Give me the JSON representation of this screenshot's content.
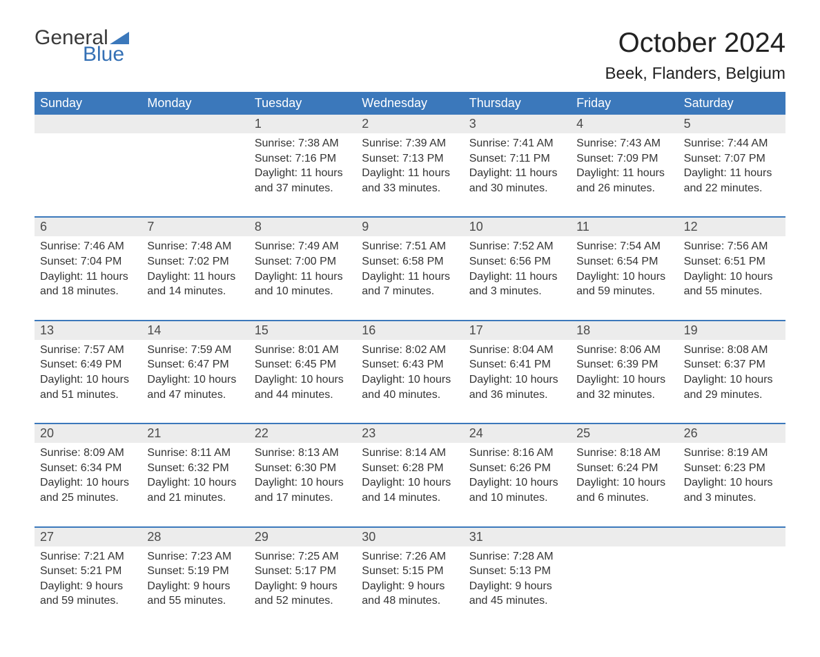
{
  "logo": {
    "general": "General",
    "blue": "Blue",
    "flag_color": "#3b78bb"
  },
  "title": "October 2024",
  "location": "Beek, Flanders, Belgium",
  "colors": {
    "header_bg": "#3b78bb",
    "header_text": "#ffffff",
    "daynum_bg": "#ececec",
    "daynum_text": "#4a4a4a",
    "body_text": "#333333",
    "week_border": "#3b78bb",
    "page_bg": "#ffffff"
  },
  "typography": {
    "title_fontsize": 40,
    "location_fontsize": 24,
    "dow_fontsize": 18,
    "daynum_fontsize": 18,
    "body_fontsize": 16
  },
  "days_of_week": [
    "Sunday",
    "Monday",
    "Tuesday",
    "Wednesday",
    "Thursday",
    "Friday",
    "Saturday"
  ],
  "weeks": [
    [
      {
        "n": "",
        "sunrise": "",
        "sunset": "",
        "daylight": ""
      },
      {
        "n": "",
        "sunrise": "",
        "sunset": "",
        "daylight": ""
      },
      {
        "n": "1",
        "sunrise": "Sunrise: 7:38 AM",
        "sunset": "Sunset: 7:16 PM",
        "daylight": "Daylight: 11 hours and 37 minutes."
      },
      {
        "n": "2",
        "sunrise": "Sunrise: 7:39 AM",
        "sunset": "Sunset: 7:13 PM",
        "daylight": "Daylight: 11 hours and 33 minutes."
      },
      {
        "n": "3",
        "sunrise": "Sunrise: 7:41 AM",
        "sunset": "Sunset: 7:11 PM",
        "daylight": "Daylight: 11 hours and 30 minutes."
      },
      {
        "n": "4",
        "sunrise": "Sunrise: 7:43 AM",
        "sunset": "Sunset: 7:09 PM",
        "daylight": "Daylight: 11 hours and 26 minutes."
      },
      {
        "n": "5",
        "sunrise": "Sunrise: 7:44 AM",
        "sunset": "Sunset: 7:07 PM",
        "daylight": "Daylight: 11 hours and 22 minutes."
      }
    ],
    [
      {
        "n": "6",
        "sunrise": "Sunrise: 7:46 AM",
        "sunset": "Sunset: 7:04 PM",
        "daylight": "Daylight: 11 hours and 18 minutes."
      },
      {
        "n": "7",
        "sunrise": "Sunrise: 7:48 AM",
        "sunset": "Sunset: 7:02 PM",
        "daylight": "Daylight: 11 hours and 14 minutes."
      },
      {
        "n": "8",
        "sunrise": "Sunrise: 7:49 AM",
        "sunset": "Sunset: 7:00 PM",
        "daylight": "Daylight: 11 hours and 10 minutes."
      },
      {
        "n": "9",
        "sunrise": "Sunrise: 7:51 AM",
        "sunset": "Sunset: 6:58 PM",
        "daylight": "Daylight: 11 hours and 7 minutes."
      },
      {
        "n": "10",
        "sunrise": "Sunrise: 7:52 AM",
        "sunset": "Sunset: 6:56 PM",
        "daylight": "Daylight: 11 hours and 3 minutes."
      },
      {
        "n": "11",
        "sunrise": "Sunrise: 7:54 AM",
        "sunset": "Sunset: 6:54 PM",
        "daylight": "Daylight: 10 hours and 59 minutes."
      },
      {
        "n": "12",
        "sunrise": "Sunrise: 7:56 AM",
        "sunset": "Sunset: 6:51 PM",
        "daylight": "Daylight: 10 hours and 55 minutes."
      }
    ],
    [
      {
        "n": "13",
        "sunrise": "Sunrise: 7:57 AM",
        "sunset": "Sunset: 6:49 PM",
        "daylight": "Daylight: 10 hours and 51 minutes."
      },
      {
        "n": "14",
        "sunrise": "Sunrise: 7:59 AM",
        "sunset": "Sunset: 6:47 PM",
        "daylight": "Daylight: 10 hours and 47 minutes."
      },
      {
        "n": "15",
        "sunrise": "Sunrise: 8:01 AM",
        "sunset": "Sunset: 6:45 PM",
        "daylight": "Daylight: 10 hours and 44 minutes."
      },
      {
        "n": "16",
        "sunrise": "Sunrise: 8:02 AM",
        "sunset": "Sunset: 6:43 PM",
        "daylight": "Daylight: 10 hours and 40 minutes."
      },
      {
        "n": "17",
        "sunrise": "Sunrise: 8:04 AM",
        "sunset": "Sunset: 6:41 PM",
        "daylight": "Daylight: 10 hours and 36 minutes."
      },
      {
        "n": "18",
        "sunrise": "Sunrise: 8:06 AM",
        "sunset": "Sunset: 6:39 PM",
        "daylight": "Daylight: 10 hours and 32 minutes."
      },
      {
        "n": "19",
        "sunrise": "Sunrise: 8:08 AM",
        "sunset": "Sunset: 6:37 PM",
        "daylight": "Daylight: 10 hours and 29 minutes."
      }
    ],
    [
      {
        "n": "20",
        "sunrise": "Sunrise: 8:09 AM",
        "sunset": "Sunset: 6:34 PM",
        "daylight": "Daylight: 10 hours and 25 minutes."
      },
      {
        "n": "21",
        "sunrise": "Sunrise: 8:11 AM",
        "sunset": "Sunset: 6:32 PM",
        "daylight": "Daylight: 10 hours and 21 minutes."
      },
      {
        "n": "22",
        "sunrise": "Sunrise: 8:13 AM",
        "sunset": "Sunset: 6:30 PM",
        "daylight": "Daylight: 10 hours and 17 minutes."
      },
      {
        "n": "23",
        "sunrise": "Sunrise: 8:14 AM",
        "sunset": "Sunset: 6:28 PM",
        "daylight": "Daylight: 10 hours and 14 minutes."
      },
      {
        "n": "24",
        "sunrise": "Sunrise: 8:16 AM",
        "sunset": "Sunset: 6:26 PM",
        "daylight": "Daylight: 10 hours and 10 minutes."
      },
      {
        "n": "25",
        "sunrise": "Sunrise: 8:18 AM",
        "sunset": "Sunset: 6:24 PM",
        "daylight": "Daylight: 10 hours and 6 minutes."
      },
      {
        "n": "26",
        "sunrise": "Sunrise: 8:19 AM",
        "sunset": "Sunset: 6:23 PM",
        "daylight": "Daylight: 10 hours and 3 minutes."
      }
    ],
    [
      {
        "n": "27",
        "sunrise": "Sunrise: 7:21 AM",
        "sunset": "Sunset: 5:21 PM",
        "daylight": "Daylight: 9 hours and 59 minutes."
      },
      {
        "n": "28",
        "sunrise": "Sunrise: 7:23 AM",
        "sunset": "Sunset: 5:19 PM",
        "daylight": "Daylight: 9 hours and 55 minutes."
      },
      {
        "n": "29",
        "sunrise": "Sunrise: 7:25 AM",
        "sunset": "Sunset: 5:17 PM",
        "daylight": "Daylight: 9 hours and 52 minutes."
      },
      {
        "n": "30",
        "sunrise": "Sunrise: 7:26 AM",
        "sunset": "Sunset: 5:15 PM",
        "daylight": "Daylight: 9 hours and 48 minutes."
      },
      {
        "n": "31",
        "sunrise": "Sunrise: 7:28 AM",
        "sunset": "Sunset: 5:13 PM",
        "daylight": "Daylight: 9 hours and 45 minutes."
      },
      {
        "n": "",
        "sunrise": "",
        "sunset": "",
        "daylight": ""
      },
      {
        "n": "",
        "sunrise": "",
        "sunset": "",
        "daylight": ""
      }
    ]
  ]
}
